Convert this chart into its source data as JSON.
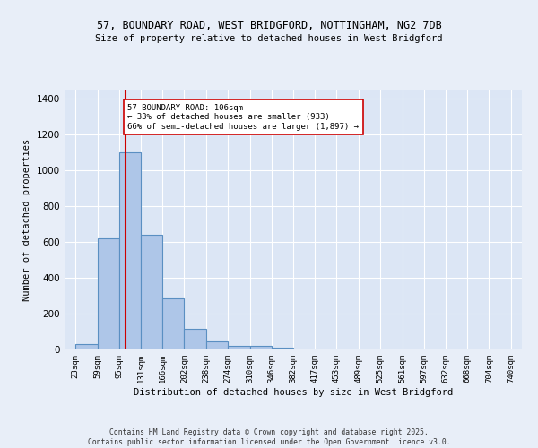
{
  "title1": "57, BOUNDARY ROAD, WEST BRIDGFORD, NOTTINGHAM, NG2 7DB",
  "title2": "Size of property relative to detached houses in West Bridgford",
  "xlabel": "Distribution of detached houses by size in West Bridgford",
  "ylabel": "Number of detached properties",
  "bin_labels": [
    "23sqm",
    "59sqm",
    "95sqm",
    "131sqm",
    "166sqm",
    "202sqm",
    "238sqm",
    "274sqm",
    "310sqm",
    "346sqm",
    "382sqm",
    "417sqm",
    "453sqm",
    "489sqm",
    "525sqm",
    "561sqm",
    "597sqm",
    "632sqm",
    "668sqm",
    "704sqm",
    "740sqm"
  ],
  "bar_values": [
    30,
    620,
    1100,
    640,
    285,
    115,
    47,
    20,
    20,
    10,
    0,
    0,
    0,
    0,
    0,
    0,
    0,
    0,
    0,
    0
  ],
  "bar_color": "#aec6e8",
  "bar_edge_color": "#5a8fc2",
  "vline_x": 106,
  "vline_color": "#cc0000",
  "annotation_text": "57 BOUNDARY ROAD: 106sqm\n← 33% of detached houses are smaller (933)\n66% of semi-detached houses are larger (1,897) →",
  "annotation_box_color": "#ffffff",
  "annotation_box_edge": "#cc0000",
  "bg_color": "#e8eef8",
  "plot_bg_color": "#dce6f5",
  "grid_color": "#ffffff",
  "footer_text": "Contains HM Land Registry data © Crown copyright and database right 2025.\nContains public sector information licensed under the Open Government Licence v3.0.",
  "ylim": [
    0,
    1450
  ],
  "bin_edges": [
    23,
    59,
    95,
    131,
    166,
    202,
    238,
    274,
    310,
    346,
    382,
    417,
    453,
    489,
    525,
    561,
    597,
    632,
    668,
    704,
    740
  ]
}
